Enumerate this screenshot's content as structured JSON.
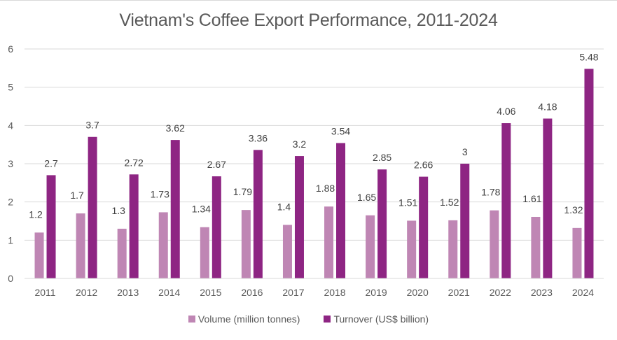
{
  "chart_data": {
    "type": "bar",
    "title": "Vietnam's Coffee Export Performance, 2011-2024",
    "xlabel": "",
    "ylabel": "",
    "ylim": [
      0,
      6
    ],
    "yticks": [
      0,
      1,
      2,
      3,
      4,
      5,
      6
    ],
    "grid": true,
    "legend_position": "bottom",
    "categories": [
      "2011",
      "2012",
      "2013",
      "2014",
      "2015",
      "2016",
      "2017",
      "2018",
      "2019",
      "2020",
      "2021",
      "2022",
      "2023",
      "2024"
    ],
    "series": [
      {
        "name": "Volume (million tonnes)",
        "color": "#bf86b4",
        "values": [
          1.2,
          1.7,
          1.3,
          1.73,
          1.34,
          1.79,
          1.4,
          1.88,
          1.65,
          1.51,
          1.52,
          1.78,
          1.61,
          1.32
        ],
        "labels": [
          "1.2",
          "1.7",
          "1.3",
          "1.73",
          "1.34",
          "1.79",
          "1.4",
          "1.88",
          "1.65",
          "1.51",
          "1.52",
          "1.78",
          "1.61",
          "1.32"
        ]
      },
      {
        "name": "Turnover (US$ billion)",
        "color": "#8e2583",
        "values": [
          2.7,
          3.7,
          2.72,
          3.62,
          2.67,
          3.36,
          3.2,
          3.54,
          2.85,
          2.66,
          3.0,
          4.06,
          4.18,
          5.48
        ],
        "labels": [
          "2.7",
          "3.7",
          "2.72",
          "3.62",
          "2.67",
          "3.36",
          "3.2",
          "3.54",
          "2.85",
          "2.66",
          "3",
          "4.06",
          "4.18",
          "5.48"
        ]
      }
    ]
  }
}
